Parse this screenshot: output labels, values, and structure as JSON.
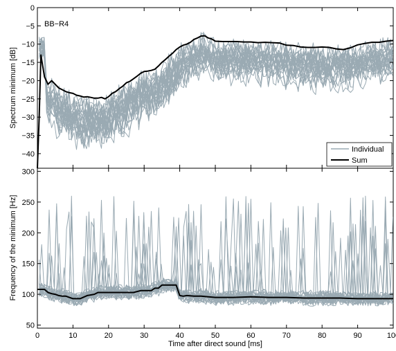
{
  "chart_data": [
    {
      "type": "line",
      "annotation": "BB−R4",
      "xlabel": "",
      "ylabel": "Spectrum minimum [dB]",
      "xlim": [
        0,
        100
      ],
      "ylim": [
        -44,
        0
      ],
      "yticks": [
        0,
        -5,
        -10,
        -15,
        -20,
        -25,
        -30,
        -35,
        -40
      ],
      "ytick_labels": [
        "0",
        "−5",
        "−10",
        "−15",
        "−20",
        "−25",
        "−30",
        "−35",
        "−40"
      ],
      "xticks": [
        0,
        10,
        20,
        30,
        40,
        50,
        60,
        70,
        80,
        90,
        100
      ],
      "xtick_labels": [],
      "legend": {
        "position": "bottom-right",
        "entries": [
          "Individual",
          "Sum"
        ]
      },
      "colors": {
        "individual": "#9aaab3",
        "sum": "#000000"
      },
      "grid": false,
      "series": [
        {
          "name": "Sum",
          "x": [
            0.0,
            0.5,
            1,
            1.5,
            2,
            3,
            4,
            5,
            6,
            7,
            8,
            9,
            10,
            11,
            12,
            13,
            14,
            15,
            16,
            17,
            18,
            19,
            20,
            21,
            22,
            23,
            24,
            25,
            26,
            27,
            28,
            29,
            30,
            31,
            32,
            33,
            34,
            35,
            36,
            37,
            38,
            39,
            40,
            41,
            42,
            43,
            44,
            45,
            46,
            47,
            48,
            49,
            50,
            52,
            54,
            56,
            58,
            60,
            62,
            64,
            66,
            68,
            70,
            72,
            74,
            76,
            78,
            80,
            82,
            84,
            86,
            88,
            90,
            92,
            94,
            96,
            98,
            100
          ],
          "values": [
            -44,
            -30,
            -13,
            -16,
            -19,
            -21,
            -20,
            -21,
            -22,
            -22.5,
            -23,
            -23.3,
            -23.5,
            -24,
            -24.2,
            -24.5,
            -24.4,
            -24.6,
            -24.8,
            -24.8,
            -24.6,
            -25,
            -24.4,
            -23.5,
            -23,
            -22.2,
            -21.5,
            -20.6,
            -20.2,
            -19.5,
            -18.8,
            -18,
            -17.5,
            -17.4,
            -17.2,
            -16.9,
            -16,
            -15,
            -14.2,
            -13.3,
            -12.5,
            -11.5,
            -10.8,
            -10.3,
            -10,
            -9.5,
            -8.7,
            -8.3,
            -7.8,
            -7.7,
            -8.3,
            -8.6,
            -9.2,
            -9.3,
            -9.3,
            -9.3,
            -9.4,
            -9.4,
            -9.6,
            -9.5,
            -9.6,
            -9.7,
            -10.3,
            -10.4,
            -10.8,
            -10.9,
            -10.9,
            -10.8,
            -10.9,
            -11.3,
            -11.5,
            -11,
            -10.2,
            -9.8,
            -9.5,
            -9.5,
            -9.2,
            -9
          ]
        }
      ]
    },
    {
      "type": "line",
      "xlabel": "Time after direct sound [ms]",
      "ylabel": "Frequency of the minimum [Hz]",
      "xlim": [
        0,
        100
      ],
      "ylim": [
        45,
        305
      ],
      "yticks": [
        50,
        100,
        150,
        200,
        250,
        300
      ],
      "ytick_labels": [
        "50",
        "100",
        "150",
        "200",
        "250",
        "300"
      ],
      "xticks": [
        0,
        10,
        20,
        30,
        40,
        50,
        60,
        70,
        80,
        90,
        100
      ],
      "xtick_labels": [
        "0",
        "10",
        "20",
        "30",
        "40",
        "50",
        "60",
        "70",
        "80",
        "90",
        "100"
      ],
      "grid": false,
      "series": [
        {
          "name": "Sum",
          "x": [
            0,
            2,
            3,
            4,
            5,
            6,
            7,
            8,
            10,
            12,
            14,
            16,
            17,
            19,
            21,
            23,
            25,
            27,
            29,
            31,
            32,
            33,
            34,
            35,
            36,
            38,
            39,
            40,
            41,
            42,
            44,
            46,
            50,
            55,
            60,
            65,
            70,
            75,
            80,
            85,
            90,
            95,
            100
          ],
          "values": [
            108,
            108,
            103,
            101,
            100,
            98,
            97,
            97,
            93,
            93,
            98,
            100,
            103,
            103,
            103,
            103,
            103,
            103,
            106,
            106,
            106,
            110,
            110,
            115,
            115,
            115,
            115,
            98,
            97,
            98,
            97,
            97,
            95,
            95,
            96,
            95,
            95,
            94,
            94,
            94,
            93,
            93,
            93
          ]
        }
      ]
    }
  ]
}
